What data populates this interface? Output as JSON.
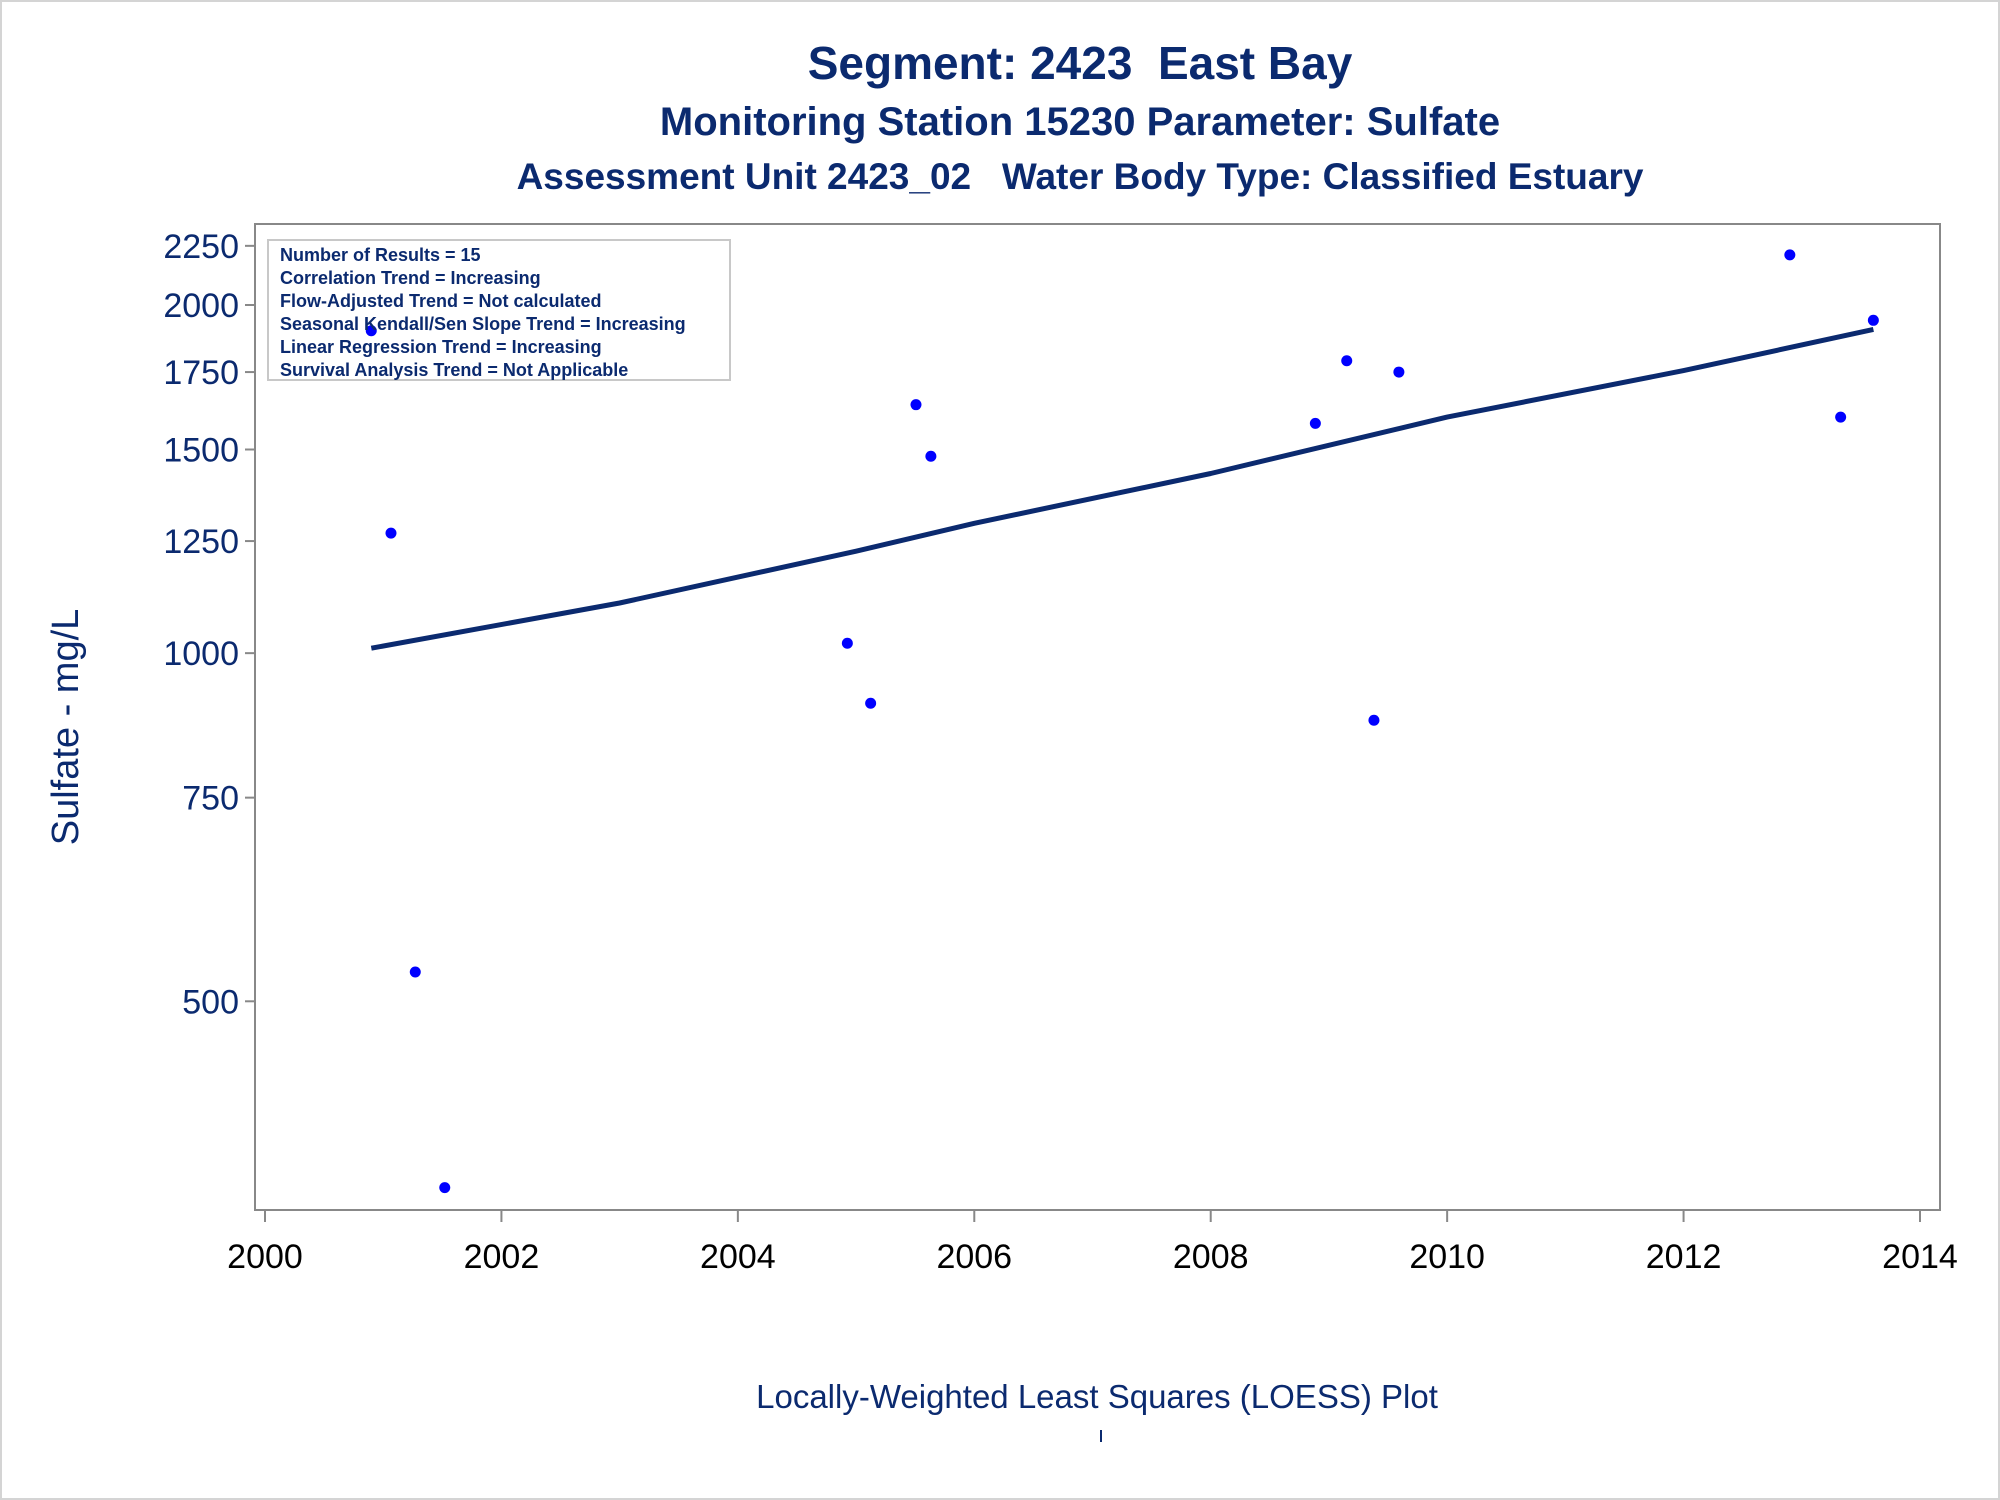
{
  "titles": {
    "line1": "Segment: 2423  East Bay",
    "line2": "Monitoring Station 15230 Parameter: Sulfate",
    "line3": "Assessment Unit 2423_02   Water Body Type: Classified Estuary"
  },
  "footnote": "Locally-Weighted Least Squares (LOESS) Plot",
  "colors": {
    "text": "#0b2a6f",
    "points": "#0000ff",
    "trend_line": "#0b2a6f",
    "axis": "#888888"
  },
  "chart_data": {
    "type": "scatter",
    "title": "",
    "xlabel": "",
    "ylabel": "Sulfate - mg/L",
    "y_scale": "log",
    "xlim": [
      "2000-01-01",
      "2014-01-01"
    ],
    "ylim": [
      330,
      2350
    ],
    "x_ticks": [
      "2000",
      "2002",
      "2004",
      "2006",
      "2008",
      "2010",
      "2012",
      "2014"
    ],
    "y_ticks": [
      500,
      750,
      1000,
      1250,
      1500,
      1750,
      2000,
      2250
    ],
    "grid": false,
    "legend": "none",
    "points": [
      {
        "x": "2000-11-25",
        "y": 1900
      },
      {
        "x": "2001-01-25",
        "y": 1270
      },
      {
        "x": "2001-04-10",
        "y": 530
      },
      {
        "x": "2001-07-10",
        "y": 345
      },
      {
        "x": "2004-12-05",
        "y": 1020
      },
      {
        "x": "2005-02-15",
        "y": 905
      },
      {
        "x": "2005-07-05",
        "y": 1640
      },
      {
        "x": "2005-08-20",
        "y": 1480
      },
      {
        "x": "2008-11-20",
        "y": 1580
      },
      {
        "x": "2009-02-25",
        "y": 1790
      },
      {
        "x": "2009-05-20",
        "y": 875
      },
      {
        "x": "2009-08-05",
        "y": 1750
      },
      {
        "x": "2012-11-25",
        "y": 2210
      },
      {
        "x": "2013-05-01",
        "y": 1600
      },
      {
        "x": "2013-08-10",
        "y": 1940
      }
    ],
    "trend": {
      "name": "",
      "points": [
        {
          "x": "2000-11-25",
          "y": 1010
        },
        {
          "x": "2003-01-01",
          "y": 1105
        },
        {
          "x": "2005-01-01",
          "y": 1225
        },
        {
          "x": "2006-01-01",
          "y": 1295
        },
        {
          "x": "2008-01-01",
          "y": 1430
        },
        {
          "x": "2010-01-01",
          "y": 1600
        },
        {
          "x": "2012-01-01",
          "y": 1755
        },
        {
          "x": "2013-08-10",
          "y": 1905
        }
      ]
    },
    "annotations": [
      "Number of Results = 15",
      "Correlation Trend = Increasing",
      "Flow-Adjusted Trend = Not calculated",
      "Seasonal Kendall/Sen Slope Trend = Increasing",
      "Linear Regression Trend = Increasing",
      "Survival Analysis Trend = Not Applicable"
    ]
  }
}
